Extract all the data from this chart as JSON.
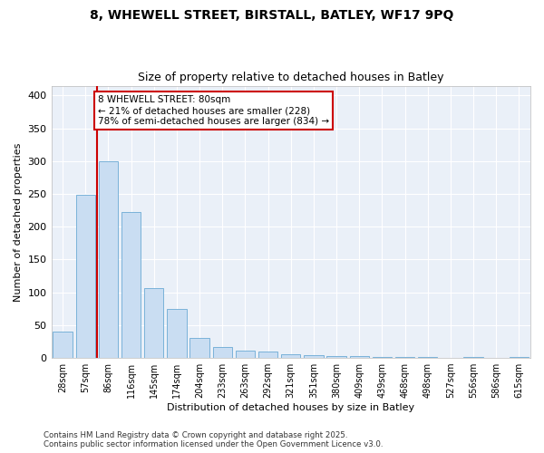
{
  "title_line1": "8, WHEWELL STREET, BIRSTALL, BATLEY, WF17 9PQ",
  "title_line2": "Size of property relative to detached houses in Batley",
  "xlabel": "Distribution of detached houses by size in Batley",
  "ylabel": "Number of detached properties",
  "categories": [
    "28sqm",
    "57sqm",
    "86sqm",
    "116sqm",
    "145sqm",
    "174sqm",
    "204sqm",
    "233sqm",
    "263sqm",
    "292sqm",
    "321sqm",
    "351sqm",
    "380sqm",
    "409sqm",
    "439sqm",
    "468sqm",
    "498sqm",
    "527sqm",
    "556sqm",
    "586sqm",
    "615sqm"
  ],
  "values": [
    40,
    248,
    300,
    222,
    107,
    75,
    30,
    17,
    11,
    10,
    5,
    4,
    3,
    3,
    2,
    1,
    1,
    0,
    2,
    0,
    1
  ],
  "bar_color": "#c9ddf2",
  "bar_edge_color": "#6aaad4",
  "vline_x": 1.5,
  "vline_color": "#cc0000",
  "annotation_text": "8 WHEWELL STREET: 80sqm\n← 21% of detached houses are smaller (228)\n78% of semi-detached houses are larger (834) →",
  "annotation_box_color": "#ffffff",
  "annotation_box_edge": "#cc0000",
  "background_color": "#ffffff",
  "plot_bg_color": "#eaf0f8",
  "grid_color": "#ffffff",
  "ylim": [
    0,
    415
  ],
  "yticks": [
    0,
    50,
    100,
    150,
    200,
    250,
    300,
    350,
    400
  ],
  "footer_line1": "Contains HM Land Registry data © Crown copyright and database right 2025.",
  "footer_line2": "Contains public sector information licensed under the Open Government Licence v3.0."
}
